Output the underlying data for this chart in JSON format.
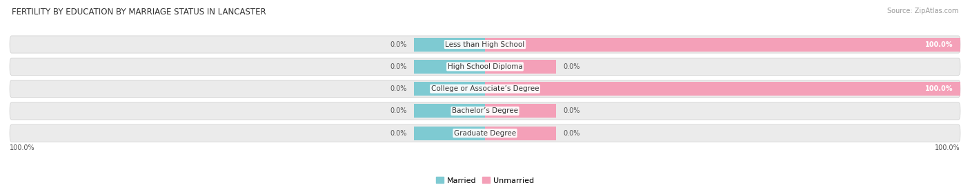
{
  "title": "FERTILITY BY EDUCATION BY MARRIAGE STATUS IN LANCASTER",
  "source": "Source: ZipAtlas.com",
  "categories": [
    "Less than High School",
    "High School Diploma",
    "College or Associate’s Degree",
    "Bachelor’s Degree",
    "Graduate Degree"
  ],
  "married": [
    0.0,
    0.0,
    0.0,
    0.0,
    0.0
  ],
  "unmarried": [
    100.0,
    0.0,
    100.0,
    0.0,
    0.0
  ],
  "married_color": "#7ECAD2",
  "unmarried_color": "#F4A0B8",
  "bg_row_color": "#EBEBEB",
  "title_fontsize": 8.5,
  "source_fontsize": 7,
  "label_fontsize": 7,
  "cat_fontsize": 7.5,
  "legend_fontsize": 8,
  "background_color": "#FFFFFF",
  "legend_married": "Married",
  "legend_unmarried": "Unmarried",
  "xlim_left": -100,
  "xlim_right": 100,
  "stub_size": 15
}
